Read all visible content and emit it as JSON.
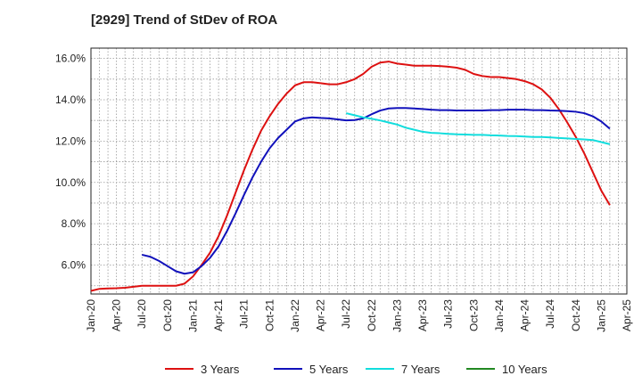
{
  "chart_data": {
    "type": "line",
    "title": "[2929]  Trend of StDev of ROA",
    "xlabel": "",
    "ylabel": "",
    "x_ticks": [
      "Jan-20",
      "Apr-20",
      "Jul-20",
      "Oct-20",
      "Jan-21",
      "Apr-21",
      "Jul-21",
      "Oct-21",
      "Jan-22",
      "Apr-22",
      "Jul-22",
      "Oct-22",
      "Jan-23",
      "Apr-23",
      "Jul-23",
      "Oct-23",
      "Jan-24",
      "Apr-24",
      "Jul-24",
      "Oct-24",
      "Jan-25",
      "Apr-25"
    ],
    "y_ticks": [
      "6.0%",
      "8.0%",
      "10.0%",
      "12.0%",
      "14.0%",
      "16.0%"
    ],
    "y_tick_values": [
      6,
      8,
      10,
      12,
      14,
      16
    ],
    "ylim": [
      4.6,
      16.5
    ],
    "grid": true,
    "legend_position": "bottom",
    "series": [
      {
        "name": "3 Years",
        "color": "#dd1111",
        "points": [
          [
            "Jan-20",
            4.75
          ],
          [
            "Feb-20",
            4.85
          ],
          [
            "Mar-20",
            4.87
          ],
          [
            "Apr-20",
            4.88
          ],
          [
            "May-20",
            4.9
          ],
          [
            "Jun-20",
            4.95
          ],
          [
            "Jul-20",
            5.0
          ],
          [
            "Aug-20",
            5.0
          ],
          [
            "Sep-20",
            5.0
          ],
          [
            "Oct-20",
            5.0
          ],
          [
            "Nov-20",
            5.0
          ],
          [
            "Dec-20",
            5.1
          ],
          [
            "Jan-21",
            5.45
          ],
          [
            "Feb-21",
            6.0
          ],
          [
            "Mar-21",
            6.6
          ],
          [
            "Apr-21",
            7.4
          ],
          [
            "May-21",
            8.4
          ],
          [
            "Jun-21",
            9.5
          ],
          [
            "Jul-21",
            10.6
          ],
          [
            "Aug-21",
            11.6
          ],
          [
            "Sep-21",
            12.5
          ],
          [
            "Oct-21",
            13.2
          ],
          [
            "Nov-21",
            13.8
          ],
          [
            "Dec-21",
            14.3
          ],
          [
            "Jan-22",
            14.7
          ],
          [
            "Feb-22",
            14.85
          ],
          [
            "Mar-22",
            14.85
          ],
          [
            "Apr-22",
            14.8
          ],
          [
            "May-22",
            14.75
          ],
          [
            "Jun-22",
            14.75
          ],
          [
            "Jul-22",
            14.85
          ],
          [
            "Aug-22",
            15.0
          ],
          [
            "Sep-22",
            15.25
          ],
          [
            "Oct-22",
            15.6
          ],
          [
            "Nov-22",
            15.8
          ],
          [
            "Dec-22",
            15.85
          ],
          [
            "Jan-23",
            15.75
          ],
          [
            "Feb-23",
            15.7
          ],
          [
            "Mar-23",
            15.65
          ],
          [
            "Apr-23",
            15.65
          ],
          [
            "May-23",
            15.65
          ],
          [
            "Jun-23",
            15.63
          ],
          [
            "Jul-23",
            15.6
          ],
          [
            "Aug-23",
            15.55
          ],
          [
            "Sep-23",
            15.45
          ],
          [
            "Oct-23",
            15.25
          ],
          [
            "Nov-23",
            15.15
          ],
          [
            "Dec-23",
            15.1
          ],
          [
            "Jan-24",
            15.1
          ],
          [
            "Feb-24",
            15.05
          ],
          [
            "Mar-24",
            15.0
          ],
          [
            "Apr-24",
            14.9
          ],
          [
            "May-24",
            14.75
          ],
          [
            "Jun-24",
            14.5
          ],
          [
            "Jul-24",
            14.1
          ],
          [
            "Aug-24",
            13.55
          ],
          [
            "Sep-24",
            12.9
          ],
          [
            "Oct-24",
            12.2
          ],
          [
            "Nov-24",
            11.4
          ],
          [
            "Dec-24",
            10.5
          ],
          [
            "Jan-25",
            9.6
          ],
          [
            "Feb-25",
            8.9
          ]
        ]
      },
      {
        "name": "5 Years",
        "color": "#1111bb",
        "points": [
          [
            "Jul-20",
            6.5
          ],
          [
            "Aug-20",
            6.4
          ],
          [
            "Sep-20",
            6.2
          ],
          [
            "Oct-20",
            5.95
          ],
          [
            "Nov-20",
            5.7
          ],
          [
            "Dec-20",
            5.58
          ],
          [
            "Jan-21",
            5.65
          ],
          [
            "Feb-21",
            5.95
          ],
          [
            "Mar-21",
            6.35
          ],
          [
            "Apr-21",
            6.9
          ],
          [
            "May-21",
            7.65
          ],
          [
            "Jun-21",
            8.5
          ],
          [
            "Jul-21",
            9.4
          ],
          [
            "Aug-21",
            10.25
          ],
          [
            "Sep-21",
            11.0
          ],
          [
            "Oct-21",
            11.65
          ],
          [
            "Nov-21",
            12.15
          ],
          [
            "Dec-21",
            12.55
          ],
          [
            "Jan-22",
            12.95
          ],
          [
            "Feb-22",
            13.1
          ],
          [
            "Mar-22",
            13.15
          ],
          [
            "Apr-22",
            13.12
          ],
          [
            "May-22",
            13.1
          ],
          [
            "Jun-22",
            13.05
          ],
          [
            "Jul-22",
            13.0
          ],
          [
            "Aug-22",
            13.02
          ],
          [
            "Sep-22",
            13.1
          ],
          [
            "Oct-22",
            13.3
          ],
          [
            "Nov-22",
            13.48
          ],
          [
            "Dec-22",
            13.58
          ],
          [
            "Jan-23",
            13.6
          ],
          [
            "Feb-23",
            13.6
          ],
          [
            "Mar-23",
            13.58
          ],
          [
            "Apr-23",
            13.55
          ],
          [
            "May-23",
            13.52
          ],
          [
            "Jun-23",
            13.5
          ],
          [
            "Jul-23",
            13.5
          ],
          [
            "Aug-23",
            13.48
          ],
          [
            "Sep-23",
            13.48
          ],
          [
            "Oct-23",
            13.48
          ],
          [
            "Nov-23",
            13.48
          ],
          [
            "Dec-23",
            13.5
          ],
          [
            "Jan-24",
            13.5
          ],
          [
            "Feb-24",
            13.52
          ],
          [
            "Mar-24",
            13.52
          ],
          [
            "Apr-24",
            13.52
          ],
          [
            "May-24",
            13.5
          ],
          [
            "Jun-24",
            13.5
          ],
          [
            "Jul-24",
            13.48
          ],
          [
            "Aug-24",
            13.47
          ],
          [
            "Sep-24",
            13.45
          ],
          [
            "Oct-24",
            13.42
          ],
          [
            "Nov-24",
            13.35
          ],
          [
            "Dec-24",
            13.2
          ],
          [
            "Jan-25",
            12.95
          ],
          [
            "Feb-25",
            12.6
          ]
        ]
      },
      {
        "name": "7 Years",
        "color": "#11dddd",
        "points": [
          [
            "Jul-22",
            13.35
          ],
          [
            "Aug-22",
            13.25
          ],
          [
            "Sep-22",
            13.15
          ],
          [
            "Oct-22",
            13.08
          ],
          [
            "Nov-22",
            13.0
          ],
          [
            "Dec-22",
            12.9
          ],
          [
            "Jan-23",
            12.8
          ],
          [
            "Feb-23",
            12.65
          ],
          [
            "Mar-23",
            12.55
          ],
          [
            "Apr-23",
            12.45
          ],
          [
            "May-23",
            12.4
          ],
          [
            "Jun-23",
            12.38
          ],
          [
            "Jul-23",
            12.35
          ],
          [
            "Aug-23",
            12.33
          ],
          [
            "Sep-23",
            12.32
          ],
          [
            "Oct-23",
            12.3
          ],
          [
            "Nov-23",
            12.3
          ],
          [
            "Dec-23",
            12.28
          ],
          [
            "Jan-24",
            12.27
          ],
          [
            "Feb-24",
            12.25
          ],
          [
            "Mar-24",
            12.24
          ],
          [
            "Apr-24",
            12.22
          ],
          [
            "May-24",
            12.2
          ],
          [
            "Jun-24",
            12.2
          ],
          [
            "Jul-24",
            12.18
          ],
          [
            "Aug-24",
            12.15
          ],
          [
            "Sep-24",
            12.13
          ],
          [
            "Oct-24",
            12.1
          ],
          [
            "Nov-24",
            12.08
          ],
          [
            "Dec-24",
            12.05
          ],
          [
            "Jan-25",
            11.95
          ],
          [
            "Feb-25",
            11.85
          ]
        ]
      },
      {
        "name": "10 Years",
        "color": "#228822",
        "points": []
      }
    ]
  }
}
